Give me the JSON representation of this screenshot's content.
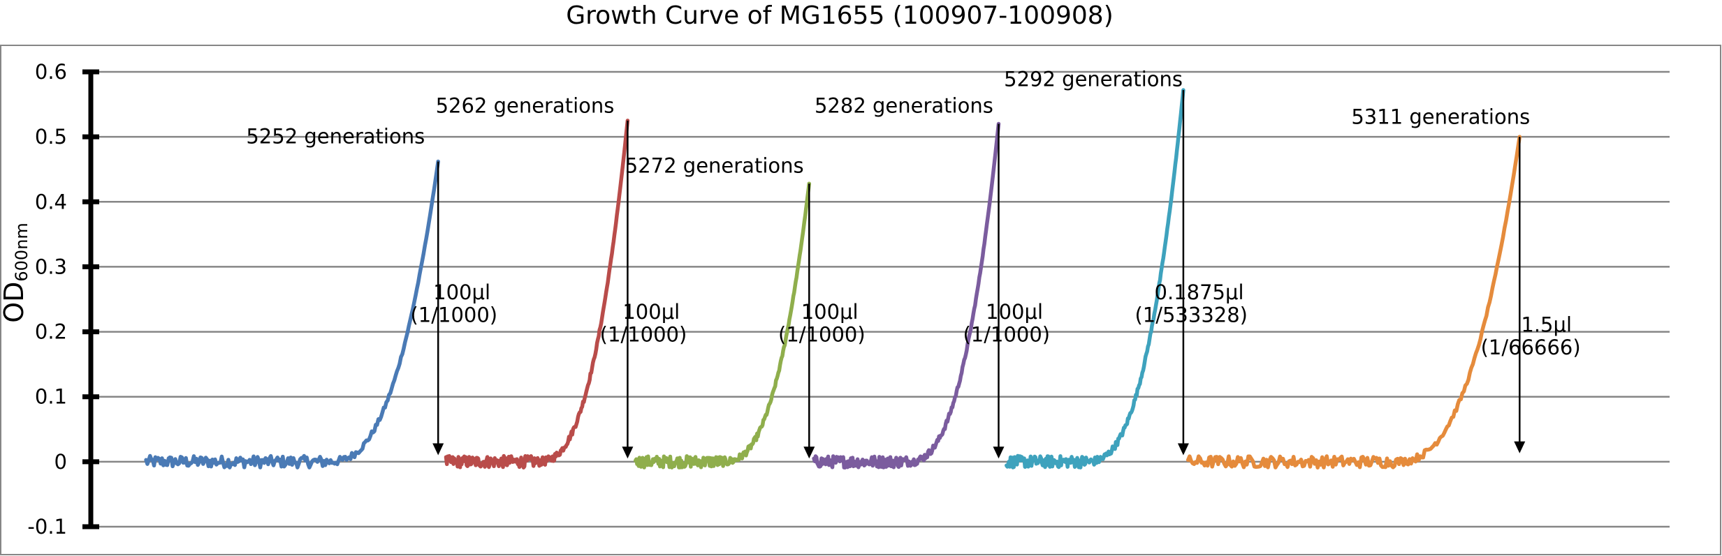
{
  "chart_data": {
    "type": "line",
    "title": "Growth Curve of MG1655 (100907-100908)",
    "ylabel": "OD",
    "ylabel_sub": "600nm",
    "ylim": [
      -0.1,
      0.6
    ],
    "yticks": [
      {
        "value": 0.6,
        "label": "0.6"
      },
      {
        "value": 0.5,
        "label": "0.5"
      },
      {
        "value": 0.4,
        "label": "0.4"
      },
      {
        "value": 0.3,
        "label": "0.3"
      },
      {
        "value": 0.2,
        "label": "0.2"
      },
      {
        "value": 0.1,
        "label": "0.1"
      },
      {
        "value": 0,
        "label": "0"
      },
      {
        "value": -0.1,
        "label": "-0.1"
      }
    ],
    "grid": true,
    "xlim": [
      0,
      100
    ],
    "series": [
      {
        "color": "#4a7ab5",
        "x_start": 3.5,
        "x_end": 22.0,
        "peak": 0.462,
        "lag_end": 0.62
      },
      {
        "color": "#b94c4a",
        "x_start": 22.5,
        "x_end": 34.0,
        "peak": 0.525,
        "lag_end": 0.5
      },
      {
        "color": "#8fae4c",
        "x_start": 34.5,
        "x_end": 45.5,
        "peak": 0.428,
        "lag_end": 0.5
      },
      {
        "color": "#7b5c9e",
        "x_start": 45.8,
        "x_end": 57.5,
        "peak": 0.52,
        "lag_end": 0.5
      },
      {
        "color": "#3ea2bd",
        "x_start": 58.0,
        "x_end": 69.2,
        "peak": 0.572,
        "lag_end": 0.45
      },
      {
        "color": "#e58b3c",
        "x_start": 69.5,
        "x_end": 90.5,
        "peak": 0.5,
        "lag_end": 0.62
      }
    ],
    "transfers": [
      {
        "x": 22.0,
        "from": 0.462,
        "to": 0.01
      },
      {
        "x": 34.0,
        "from": 0.525,
        "to": 0.005
      },
      {
        "x": 45.5,
        "from": 0.428,
        "to": 0.005
      },
      {
        "x": 57.5,
        "from": 0.52,
        "to": 0.005
      },
      {
        "x": 69.2,
        "from": 0.572,
        "to": 0.01
      },
      {
        "x": 90.5,
        "from": 0.5,
        "to": 0.013
      }
    ],
    "annotations": [
      {
        "text": "5252 generations",
        "x": 15.5,
        "y": 0.49
      },
      {
        "text": "5262 generations",
        "x": 27.5,
        "y": 0.537
      },
      {
        "text": "5272 generations",
        "x": 39.5,
        "y": 0.445
      },
      {
        "text": "5282 generations",
        "x": 51.5,
        "y": 0.537
      },
      {
        "text": "5292 generations",
        "x": 63.5,
        "y": 0.578
      },
      {
        "text": "5311 generations",
        "x": 85.5,
        "y": 0.52
      },
      {
        "text": "100μl",
        "x": 23.5,
        "y": 0.25
      },
      {
        "text": "(1/1000)",
        "x": 23.0,
        "y": 0.215
      },
      {
        "text": "100μl",
        "x": 35.5,
        "y": 0.22
      },
      {
        "text": "(1/1000)",
        "x": 35.0,
        "y": 0.185
      },
      {
        "text": "100μl",
        "x": 46.8,
        "y": 0.22
      },
      {
        "text": "(1/1000)",
        "x": 46.3,
        "y": 0.185
      },
      {
        "text": "100μl",
        "x": 58.5,
        "y": 0.22
      },
      {
        "text": "(1/1000)",
        "x": 58.0,
        "y": 0.185
      },
      {
        "text": "0.1875μl",
        "x": 70.2,
        "y": 0.25
      },
      {
        "text": "(1/533328)",
        "x": 69.7,
        "y": 0.215
      },
      {
        "text": "1.5μl",
        "x": 92.2,
        "y": 0.2
      },
      {
        "text": "(1/66666)",
        "x": 91.2,
        "y": 0.165
      }
    ]
  }
}
